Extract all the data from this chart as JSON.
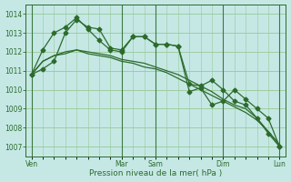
{
  "background_color": "#c5e8e5",
  "grid_color": "#98c898",
  "line_color": "#2d6b2d",
  "ylabel_ticks": [
    1007,
    1008,
    1009,
    1010,
    1011,
    1012,
    1013,
    1014
  ],
  "xlabel": "Pression niveau de la mer( hPa )",
  "x_tick_labels": [
    "Ven",
    "Mar",
    "Sam",
    "Dim",
    "Lun"
  ],
  "x_tick_positions": [
    0,
    8,
    11,
    17,
    22
  ],
  "vline_positions": [
    0,
    8,
    11,
    17,
    22
  ],
  "n_points": 23,
  "series1_x": [
    0,
    1,
    2,
    3,
    4,
    5,
    6,
    7,
    8,
    9,
    10,
    11,
    12,
    13,
    14,
    15,
    16,
    17,
    18,
    19,
    20,
    21,
    22
  ],
  "series1_y": [
    1010.8,
    1011.1,
    1011.5,
    1013.0,
    1013.7,
    1013.3,
    1013.2,
    1012.2,
    1012.1,
    1012.8,
    1012.8,
    1012.4,
    1012.4,
    1012.3,
    1010.3,
    1010.2,
    1010.5,
    1010.0,
    1009.4,
    1009.2,
    1008.5,
    1007.7,
    1007.0
  ],
  "series2_x": [
    0,
    1,
    2,
    3,
    4,
    5,
    6,
    7,
    8,
    9,
    10,
    11,
    12,
    13,
    14,
    15,
    16,
    17,
    18,
    19,
    20,
    21,
    22
  ],
  "series2_y": [
    1010.8,
    1012.1,
    1013.0,
    1013.3,
    1013.8,
    1013.2,
    1012.6,
    1012.1,
    1012.0,
    1012.8,
    1012.8,
    1012.4,
    1012.4,
    1012.3,
    1009.9,
    1010.1,
    1009.2,
    1009.4,
    1010.0,
    1009.5,
    1009.0,
    1008.5,
    1007.0
  ],
  "series3_x": [
    0,
    1,
    2,
    3,
    4,
    5,
    6,
    7,
    8,
    9,
    10,
    11,
    12,
    13,
    14,
    15,
    16,
    17,
    18,
    19,
    20,
    21,
    22
  ],
  "series3_y": [
    1010.8,
    1011.5,
    1011.8,
    1011.9,
    1012.1,
    1012.0,
    1011.9,
    1011.8,
    1011.6,
    1011.5,
    1011.4,
    1011.2,
    1011.0,
    1010.8,
    1010.5,
    1010.2,
    1009.9,
    1009.5,
    1009.2,
    1009.0,
    1008.5,
    1007.8,
    1007.1
  ],
  "series4_x": [
    0,
    1,
    2,
    3,
    4,
    5,
    6,
    7,
    8,
    9,
    10,
    11,
    12,
    13,
    14,
    15,
    16,
    17,
    18,
    19,
    20,
    21,
    22
  ],
  "series4_y": [
    1010.8,
    1011.5,
    1011.8,
    1012.0,
    1012.1,
    1011.9,
    1011.8,
    1011.7,
    1011.5,
    1011.4,
    1011.2,
    1011.1,
    1010.9,
    1010.6,
    1010.3,
    1010.0,
    1009.7,
    1009.4,
    1009.1,
    1008.8,
    1008.4,
    1007.8,
    1007.1
  ],
  "ylim": [
    1006.5,
    1014.5
  ],
  "xlim": [
    -0.5,
    22.5
  ]
}
